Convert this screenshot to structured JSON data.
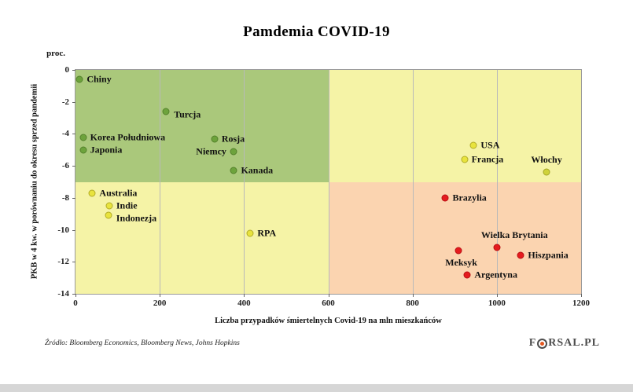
{
  "footer": {
    "source": "Źródło:  Bloomberg Economics, Bloomberg News, Johns Hopkins",
    "logo_prefix": "F",
    "logo_suffix": "RSAL.PL"
  },
  "chart_data": {
    "type": "scatter",
    "title": "Pamdemia COVID-19",
    "xlabel": "Liczba przypadków śmiertelnych Covid-19 na mln mieszkańców",
    "ylabel": "PKB w 4 kw. w porównaniu do okresu sprzed pandemii",
    "y_unit": "proc.",
    "xlim": [
      0,
      1200
    ],
    "ylim": [
      -14,
      0
    ],
    "xticks": [
      0,
      200,
      400,
      600,
      800,
      1000,
      1200
    ],
    "yticks": [
      0,
      -2,
      -4,
      -6,
      -8,
      -10,
      -12,
      -14
    ],
    "grid": "vertical-only",
    "legend": "none",
    "regions": [
      {
        "name": "green-quadrant",
        "x0": 0,
        "x1": 600,
        "y0": 0,
        "y1": -7,
        "color": "#aac87b"
      },
      {
        "name": "yellow-top-right",
        "x0": 600,
        "x1": 1200,
        "y0": 0,
        "y1": -7,
        "color": "#f5f3a6"
      },
      {
        "name": "yellow-bottom-left",
        "x0": 0,
        "x1": 600,
        "y0": -7,
        "y1": -14,
        "color": "#f5f3a6"
      },
      {
        "name": "orange-quadrant",
        "x0": 600,
        "x1": 1200,
        "y0": -7,
        "y1": -14,
        "color": "#fbd4b0"
      }
    ],
    "points": [
      {
        "label": "Chiny",
        "x": 10,
        "y": -0.6,
        "color": "#6da33c",
        "stroke": "#55822c",
        "label_side": "right"
      },
      {
        "label": "Turcja",
        "x": 215,
        "y": -2.6,
        "color": "#6da33c",
        "stroke": "#55822c",
        "label_side": "right-below"
      },
      {
        "label": "Korea Południowa",
        "x": 18,
        "y": -4.2,
        "color": "#6da33c",
        "stroke": "#55822c",
        "label_side": "right"
      },
      {
        "label": "Japonia",
        "x": 18,
        "y": -5.0,
        "color": "#6da33c",
        "stroke": "#55822c",
        "label_side": "right"
      },
      {
        "label": "Rosja",
        "x": 330,
        "y": -4.3,
        "color": "#6da33c",
        "stroke": "#55822c",
        "label_side": "right"
      },
      {
        "label": "Niemcy",
        "x": 375,
        "y": -5.1,
        "color": "#6da33c",
        "stroke": "#55822c",
        "label_side": "left"
      },
      {
        "label": "Kanada",
        "x": 376,
        "y": -6.3,
        "color": "#6da33c",
        "stroke": "#55822c",
        "label_side": "right"
      },
      {
        "label": "Australia",
        "x": 40,
        "y": -7.7,
        "color": "#e8e33d",
        "stroke": "#b1ab26",
        "label_side": "right"
      },
      {
        "label": "Indie",
        "x": 80,
        "y": -8.5,
        "color": "#e8e33d",
        "stroke": "#b1ab26",
        "label_side": "right"
      },
      {
        "label": "Indonezja",
        "x": 78,
        "y": -9.1,
        "color": "#e8e33d",
        "stroke": "#b1ab26",
        "label_side": "right-below"
      },
      {
        "label": "RPA",
        "x": 415,
        "y": -10.2,
        "color": "#e8e33d",
        "stroke": "#b1ab26",
        "label_side": "right"
      },
      {
        "label": "USA",
        "x": 945,
        "y": -4.7,
        "color": "#e8e33d",
        "stroke": "#b1ab26",
        "label_side": "right"
      },
      {
        "label": "Francja",
        "x": 923,
        "y": -5.6,
        "color": "#e8e33d",
        "stroke": "#b1ab26",
        "label_side": "right"
      },
      {
        "label": "Włochy",
        "x": 1118,
        "y": -6.4,
        "color": "#cfd23a",
        "stroke": "#a3a527",
        "label_side": "above"
      },
      {
        "label": "Brazylia",
        "x": 878,
        "y": -8.0,
        "color": "#e51b1e",
        "stroke": "#b80f13",
        "label_side": "right"
      },
      {
        "label": "Meksyk",
        "x": 908,
        "y": -11.3,
        "color": "#e51b1e",
        "stroke": "#b80f13",
        "label_side": "below"
      },
      {
        "label": "Wielka Brytania",
        "x": 1000,
        "y": -11.1,
        "color": "#e51b1e",
        "stroke": "#b80f13",
        "label_side": "above-right"
      },
      {
        "label": "Hiszpania",
        "x": 1057,
        "y": -11.6,
        "color": "#e51b1e",
        "stroke": "#b80f13",
        "label_side": "right"
      },
      {
        "label": "Argentyna",
        "x": 930,
        "y": -12.8,
        "color": "#e51b1e",
        "stroke": "#b80f13",
        "label_side": "right"
      }
    ]
  }
}
